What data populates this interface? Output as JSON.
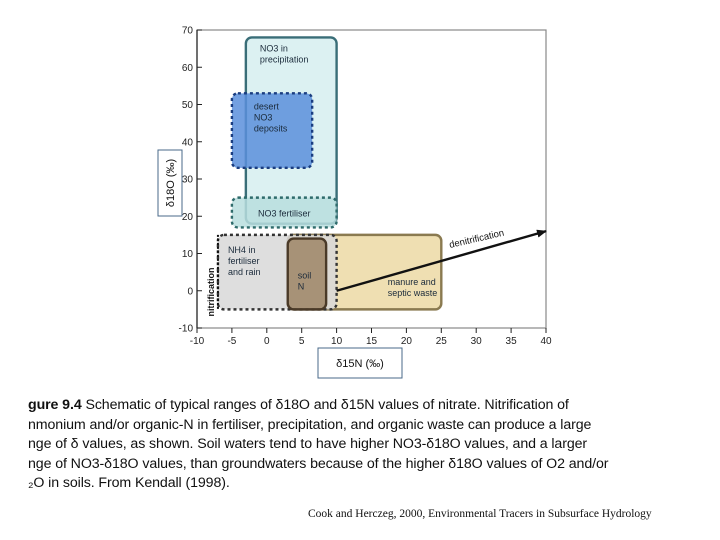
{
  "chart_data": {
    "type": "region-diagram",
    "title": "",
    "xlabel": "δ15N (‰)",
    "ylabel": "δ18O (‰)",
    "xlim": [
      -10,
      40
    ],
    "ylim": [
      -10,
      70
    ],
    "xticks": [
      -10,
      -5,
      0,
      5,
      10,
      15,
      20,
      25,
      30,
      35,
      40
    ],
    "yticks": [
      70,
      60,
      50,
      40,
      30,
      20,
      10,
      0,
      -10
    ],
    "xtick_labels": [
      "-10",
      "-5",
      "0",
      "5",
      "10",
      "15",
      "20",
      "25",
      "30",
      "35",
      "40"
    ],
    "ytick_labels": [
      "70",
      "60",
      "50",
      "40",
      "30",
      "20",
      "10",
      "0",
      "-10"
    ],
    "regions": [
      {
        "label": [
          "NO3 in",
          "precipitation"
        ],
        "x": [
          -3,
          10
        ],
        "y": [
          18,
          68
        ],
        "fill": "#d6eef0",
        "stroke": "#3a6e78",
        "style": "solid"
      },
      {
        "label": [
          "desert",
          "NO3",
          "deposits"
        ],
        "x": [
          -5,
          6.5
        ],
        "y": [
          33,
          53
        ],
        "fill": "#5b8fdc",
        "stroke": "#1a3d80",
        "style": "dashed"
      },
      {
        "label": [
          "NO3 fertiliser"
        ],
        "x": [
          -5,
          10
        ],
        "y": [
          17,
          25
        ],
        "fill": "#b8dede",
        "stroke": "#2e6b6b",
        "style": "dashed"
      },
      {
        "label": [
          "manure and",
          "septic waste"
        ],
        "x": [
          3,
          25
        ],
        "y": [
          -5,
          15
        ],
        "fill": "#ecd9a4",
        "stroke": "#8a7a50",
        "style": "solid"
      },
      {
        "label": [
          "NH4 in",
          "fertiliser",
          "and rain"
        ],
        "x": [
          -7,
          10
        ],
        "y": [
          -5,
          15
        ],
        "fill": "#d8d8d8",
        "stroke": "#333333",
        "style": "dashed"
      },
      {
        "label": [
          "soil",
          "N"
        ],
        "x": [
          3,
          8.5
        ],
        "y": [
          -5,
          14
        ],
        "fill": "#9a8060",
        "stroke": "#4a3a28",
        "style": "solid"
      }
    ],
    "arrows": [
      {
        "label": "denitrification",
        "from": [
          10,
          0
        ],
        "to": [
          40,
          16
        ]
      },
      {
        "label": "nitrification",
        "from": [
          -7,
          15
        ],
        "to": [
          -7,
          -5
        ]
      }
    ]
  },
  "caption": {
    "lines": [
      {
        "bold": "gure 9.4",
        "text": " Schematic of typical ranges of δ18O and δ15N values of nitrate. Nitrification of"
      },
      {
        "bold": "",
        "text": "nmonium and/or organic-N in fertiliser, precipitation, and organic waste can produce a large"
      },
      {
        "bold": "",
        "text": "nge of δ values, as shown. Soil waters tend to have higher NO3-δ18O values, and a larger"
      },
      {
        "bold": "",
        "text": "nge of NO3-δ18O values, than groundwaters because of the higher δ18O values of O2 and/or"
      },
      {
        "bold": "",
        "text": "₂O in soils. From Kendall (1998)."
      }
    ]
  },
  "credit": "Cook and Herczeg, 2000, Environmental Tracers in Subsurface Hydrology",
  "colors": {
    "axis": "#222222",
    "frame": "#888888",
    "arrow": "#111111"
  }
}
